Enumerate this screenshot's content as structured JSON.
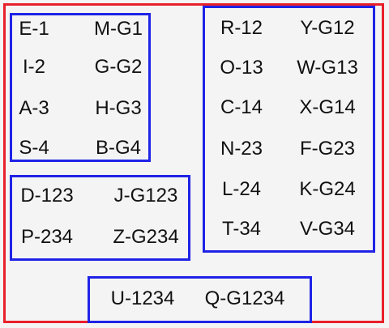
{
  "colors": {
    "outer_border": "#e8202a",
    "group_border": "#1f23e6",
    "background": "#f4f4f4",
    "text": "#111111"
  },
  "groups": {
    "g1": [
      "E-1",
      "M-G1",
      "I-2",
      "G-G2",
      "A-3",
      "H-G3",
      "S-4",
      "B-G4"
    ],
    "g2": [
      "D-123",
      "J-G123",
      "P-234",
      "Z-G234"
    ],
    "g3": [
      "R-12",
      "Y-G12",
      "O-13",
      "W-G13",
      "C-14",
      "X-G14",
      "N-23",
      "F-G23",
      "L-24",
      "K-G24",
      "T-34",
      "V-G34"
    ],
    "g4": [
      "U-1234",
      "Q-G1234"
    ]
  }
}
